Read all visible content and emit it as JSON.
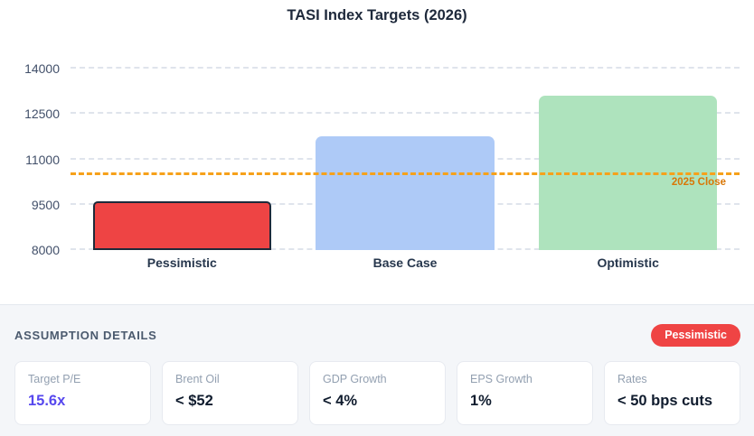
{
  "chart_data": {
    "type": "bar",
    "title": "TASI Index Targets (2026)",
    "categories": [
      "Pessimistic",
      "Base Case",
      "Optimistic"
    ],
    "values": [
      9600,
      11750,
      13100
    ],
    "bar_colors": [
      "#ee4444",
      "#aecaf7",
      "#aee3bd"
    ],
    "bar_border_colors": [
      "#1e2a3a",
      null,
      null
    ],
    "yticks": [
      8000,
      9500,
      11000,
      12500,
      14000
    ],
    "ylim": [
      8000,
      14000
    ],
    "grid": true,
    "legend": "none",
    "reference_line": {
      "label": "2025 Close",
      "value": 10480,
      "line_color": "#f6a11a",
      "label_color": "#d97706"
    }
  },
  "assumptions": {
    "heading": "ASSUMPTION DETAILS",
    "badge": {
      "label": "Pessimistic",
      "color": "#ef4444"
    },
    "cards": [
      {
        "label": "Target P/E",
        "value": "15.6x",
        "value_color": "#5748ee"
      },
      {
        "label": "Brent Oil",
        "value": "< $52"
      },
      {
        "label": "GDP Growth",
        "value": "< 4%"
      },
      {
        "label": "EPS Growth",
        "value": "1%"
      },
      {
        "label": "Rates",
        "value": "< 50 bps cuts"
      }
    ]
  }
}
